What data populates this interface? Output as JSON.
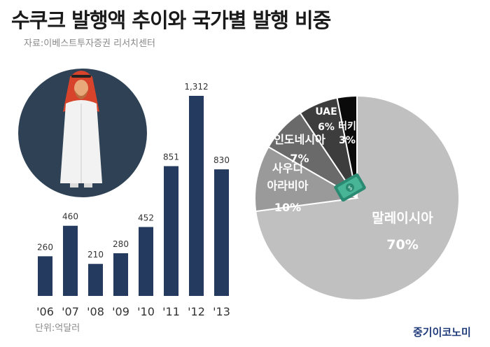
{
  "header": {
    "title": "수쿠크 발행액 추이와 국가별 발행 비중",
    "source": "자료:이베스트투자증권 리서치센터",
    "unit": "단위:억달러",
    "brand": "중기이코노미"
  },
  "colors": {
    "bar": "#243a5e",
    "circle_bg": "#2f4255",
    "pie_malaysia": "#c0c0c0",
    "pie_saudi": "#9a9a9a",
    "pie_indonesia": "#6a6a6a",
    "pie_uae": "#3d3d3d",
    "pie_turkey": "#0a0a0a"
  },
  "icons": [
    "arab-man-figure-icon",
    "money-bundle-icon"
  ],
  "chart_data": [
    {
      "type": "bar",
      "categories": [
        "'06",
        "'07",
        "'08",
        "'09",
        "'10",
        "'11",
        "'12",
        "'13"
      ],
      "values": [
        260,
        460,
        210,
        280,
        452,
        851,
        1312,
        830
      ],
      "value_labels": [
        "260",
        "460",
        "210",
        "280",
        "452",
        "851",
        "1,312",
        "830"
      ],
      "ylim": [
        0,
        1400
      ]
    },
    {
      "type": "pie",
      "slices": [
        {
          "label": "말레이시아",
          "label_lines": [
            "말레이시아"
          ],
          "pct_text": "70%",
          "value": 70
        },
        {
          "label": "사우디 아라비아",
          "label_lines": [
            "사우디",
            "아라비아"
          ],
          "pct_text": "10%",
          "value": 10
        },
        {
          "label": "인도네시아",
          "label_lines": [
            "인도네시아"
          ],
          "pct_text": "7%",
          "value": 7
        },
        {
          "label": "UAE",
          "label_lines": [
            "UAE"
          ],
          "pct_text": "6%",
          "value": 6
        },
        {
          "label": "터키",
          "label_lines": [
            "터키"
          ],
          "pct_text": "3%",
          "value": 3
        }
      ]
    }
  ]
}
